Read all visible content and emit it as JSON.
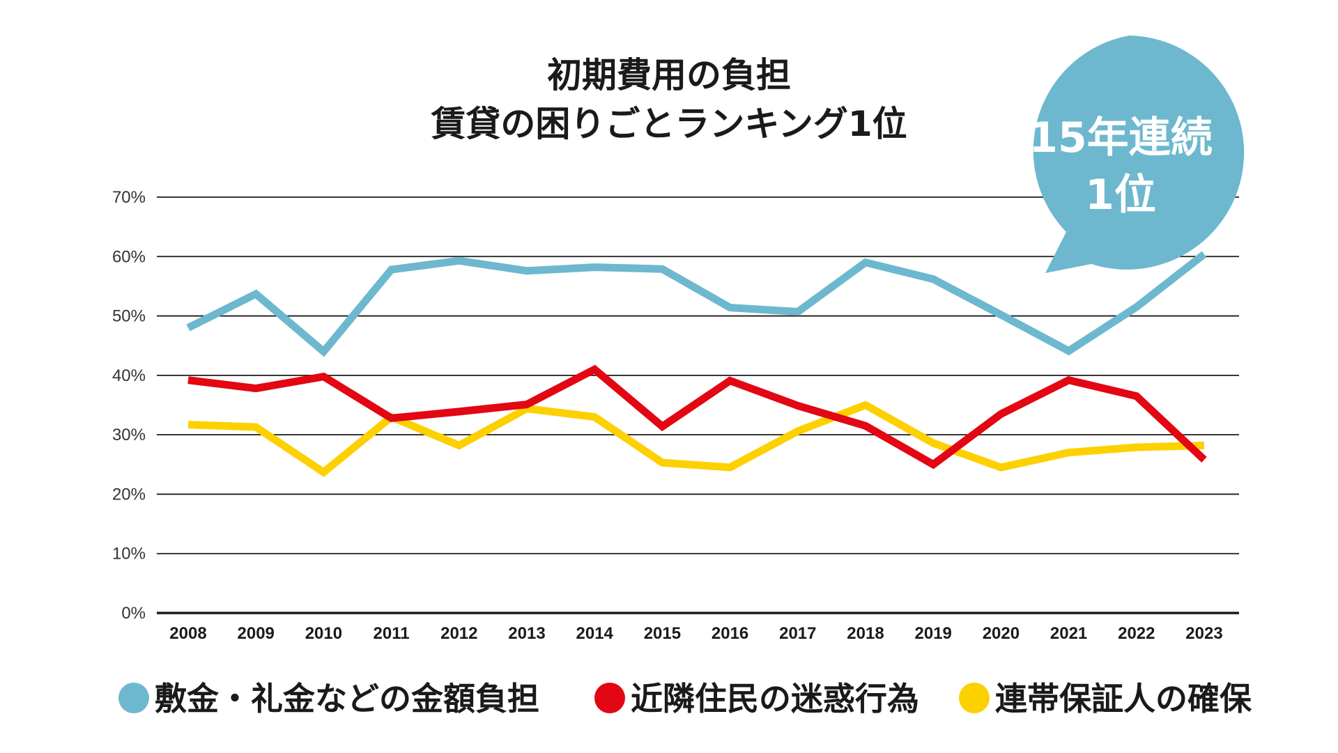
{
  "chart_data": {
    "type": "line",
    "title_lines": [
      "初期費用の負担",
      "賃貸の困りごとランキング1位"
    ],
    "categories": [
      "2008",
      "2009",
      "2010",
      "2011",
      "2012",
      "2013",
      "2014",
      "2015",
      "2016",
      "2017",
      "2018",
      "2019",
      "2020",
      "2021",
      "2022",
      "2023"
    ],
    "y_ticks": [
      "0%",
      "10%",
      "20%",
      "30%",
      "40%",
      "50%",
      "60%",
      "70%"
    ],
    "ylim": [
      0,
      70
    ],
    "grid": true,
    "series": [
      {
        "name": "敷金・礼金などの金額負担",
        "color": "#6db8cf",
        "values": [
          48,
          53.7,
          44,
          57.8,
          59.3,
          57.6,
          58.2,
          57.9,
          51.4,
          50.7,
          59,
          56.2,
          50.2,
          44.1,
          51.5,
          60.4
        ]
      },
      {
        "name": "近隣住民の迷惑行為",
        "color": "#e30613",
        "values": [
          39.2,
          37.8,
          39.8,
          32.8,
          33.9,
          35.1,
          41,
          31.4,
          39.1,
          34.9,
          31.5,
          25,
          33.5,
          39.2,
          36.5,
          25.8
        ]
      },
      {
        "name": "連帯保証人の確保",
        "color": "#fdd000",
        "values": [
          31.7,
          31.3,
          23.7,
          33,
          28.2,
          34.4,
          33,
          25.3,
          24.5,
          30.6,
          35,
          28.6,
          24.5,
          27,
          27.9,
          28.2
        ]
      }
    ],
    "legend_placement": "bottom",
    "badge": {
      "lines": [
        "15年連続",
        "1位"
      ],
      "color": "#6db8cf"
    }
  }
}
